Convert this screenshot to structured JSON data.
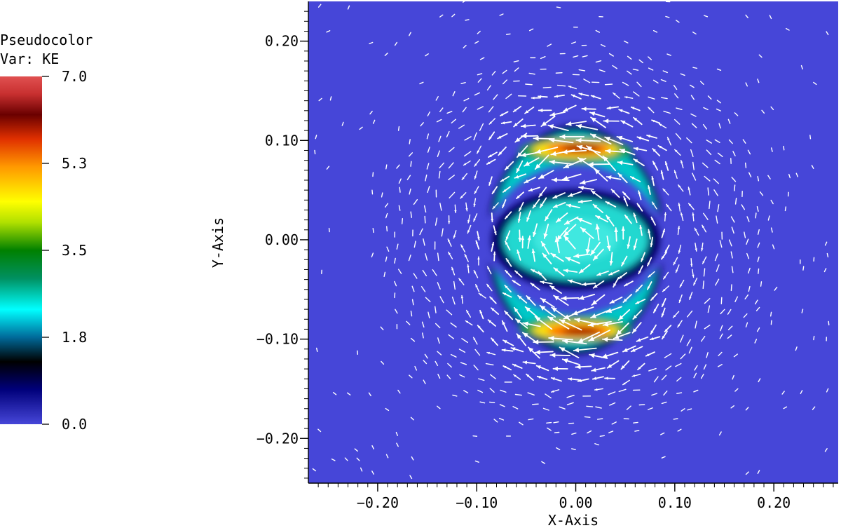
{
  "chart_data": {
    "type": "heatmap",
    "title": "",
    "legend": {
      "title_line1": "Pseudocolor",
      "title_line2": "Var: KE",
      "tick_labels": [
        "7.0",
        "5.3",
        "3.5",
        "1.8",
        "0.0"
      ],
      "min": 0.0,
      "max": 7.0,
      "placement": "left"
    },
    "xlabel": "X-Axis",
    "ylabel": "Y-Axis",
    "xlim": [
      -0.27,
      0.265
    ],
    "ylim": [
      -0.245,
      0.24
    ],
    "x_ticks": [
      -0.2,
      -0.1,
      0.0,
      0.1,
      0.2
    ],
    "y_ticks": [
      -0.2,
      -0.1,
      0.0,
      0.1,
      0.2
    ],
    "x_tick_labels": [
      "−0.20",
      "−0.10",
      "0.00",
      "0.10",
      "0.20"
    ],
    "y_tick_labels": [
      "−0.20",
      "−0.10",
      "0.00",
      "0.10",
      "0.20"
    ],
    "background_value": 0.0,
    "features": [
      {
        "name": "upper crescent",
        "center": [
          0.0,
          0.09
        ],
        "peak_value": 6.0
      },
      {
        "name": "central ellipse",
        "center": [
          0.0,
          0.0
        ],
        "peak_value": 1.9
      },
      {
        "name": "lower crescent",
        "center": [
          0.0,
          -0.09
        ],
        "peak_value": 6.0
      }
    ],
    "vector_overlay": {
      "color": "#ffffff"
    },
    "grid": false,
    "colors": {
      "background": "#4646d8",
      "vectors": "#ffffff"
    }
  }
}
